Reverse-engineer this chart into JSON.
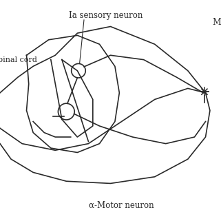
{
  "bg_color": "#ffffff",
  "line_color": "#2a2a2a",
  "lw": 1.2,
  "figsize": [
    3.21,
    3.21
  ],
  "dpi": 100,
  "labels": {
    "ia_sensory": "Ia sensory neuron",
    "spinal_cord": "pinal cord",
    "alpha_motor": "α-Motor neuron",
    "muscle_top": "M",
    "muscle_bot": "–"
  },
  "coord": {
    "xlim": [
      0,
      10
    ],
    "ylim": [
      0,
      10
    ]
  }
}
